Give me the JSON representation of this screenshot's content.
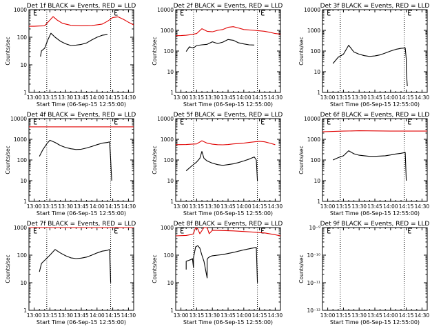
{
  "chart_data": [
    {
      "type": "line",
      "title": "Det 1f BLACK = Events, RED = LLD",
      "xlabel": "Start Time (06-Sep-15 12:55:00)",
      "ylabel": "Counts/sec",
      "yscale": "log",
      "ylim": [
        1,
        1000
      ],
      "ytick_labels": [
        "1",
        "10",
        "100",
        "1000"
      ],
      "xlim": [
        "12:55",
        "14:35"
      ],
      "xtick_labels": [
        "13:00",
        "13:15",
        "13:30",
        "13:45",
        "14:00",
        "14:15",
        "14:30"
      ],
      "vlines": [
        "13:12",
        "14:13"
      ],
      "edge_markers": [
        "13:00",
        "14:17"
      ],
      "series": [
        {
          "color": "#000000",
          "x": [
            "13:06",
            "13:07",
            "13:10",
            "13:13",
            "13:16",
            "13:20",
            "13:25",
            "13:30",
            "13:35",
            "13:40",
            "13:45",
            "13:50",
            "13:55",
            "14:00",
            "14:05",
            "14:10"
          ],
          "values": [
            20,
            32,
            40,
            80,
            140,
            100,
            72,
            58,
            50,
            52,
            55,
            62,
            80,
            100,
            118,
            125
          ]
        },
        {
          "color": "#e00000",
          "x": [
            "12:55",
            "13:00",
            "13:05",
            "13:10",
            "13:15",
            "13:18",
            "13:22",
            "13:27",
            "13:35",
            "13:45",
            "13:55",
            "14:05",
            "14:10",
            "14:15",
            "14:20",
            "14:25",
            "14:30",
            "14:35"
          ],
          "values": [
            250,
            250,
            255,
            260,
            420,
            560,
            420,
            320,
            270,
            260,
            265,
            300,
            380,
            520,
            550,
            450,
            350,
            280
          ]
        }
      ]
    },
    {
      "type": "line",
      "title": "Det 2f BLACK = Events, RED = LLD",
      "xlabel": "Start Time (06-Sep-15 12:55:00)",
      "ylabel": "Counts/sec",
      "yscale": "log",
      "ylim": [
        1,
        10000
      ],
      "ytick_labels": [
        "1",
        "10",
        "100",
        "1000",
        "10000"
      ],
      "xlim": [
        "12:55",
        "14:35"
      ],
      "xtick_labels": [
        "13:00",
        "13:15",
        "13:30",
        "13:45",
        "14:00",
        "14:15",
        "14:30"
      ],
      "vlines": [
        "13:12",
        "14:13"
      ],
      "edge_markers": [
        "13:00",
        "14:17"
      ],
      "series": [
        {
          "color": "#000000",
          "x": [
            "13:05",
            "13:08",
            "13:12",
            "13:15",
            "13:20",
            "13:25",
            "13:30",
            "13:35",
            "13:40",
            "13:45",
            "13:50",
            "13:55",
            "14:00",
            "14:05",
            "14:10"
          ],
          "values": [
            95,
            160,
            140,
            185,
            200,
            210,
            280,
            230,
            270,
            360,
            330,
            250,
            220,
            200,
            195
          ]
        },
        {
          "color": "#e00000",
          "x": [
            "12:55",
            "13:00",
            "13:05",
            "13:10",
            "13:15",
            "13:20",
            "13:25",
            "13:30",
            "13:35",
            "13:40",
            "13:45",
            "13:50",
            "13:55",
            "14:00",
            "14:05",
            "14:10",
            "14:15",
            "14:20",
            "14:25",
            "14:30",
            "14:35"
          ],
          "values": [
            550,
            560,
            580,
            620,
            700,
            1200,
            900,
            850,
            1000,
            1100,
            1400,
            1500,
            1300,
            1100,
            1050,
            1000,
            950,
            900,
            800,
            700,
            650
          ]
        }
      ]
    },
    {
      "type": "line",
      "title": "Det 3f BLACK = Events, RED = LLD",
      "xlabel": "Start Time (06-Sep-15 12:55:00)",
      "ylabel": "Counts/sec",
      "yscale": "log",
      "ylim": [
        1,
        10000
      ],
      "ytick_labels": [
        "1",
        "10",
        "100",
        "1000",
        "10000"
      ],
      "xlim": [
        "12:55",
        "14:35"
      ],
      "xtick_labels": [
        "13:00",
        "13:15",
        "13:30",
        "13:45",
        "14:00",
        "14:15",
        "14:30"
      ],
      "vlines": [
        "13:12",
        "14:13"
      ],
      "edge_markers": [
        "13:00",
        "14:17"
      ],
      "series": [
        {
          "color": "#000000",
          "x": [
            "13:05",
            "13:10",
            "13:15",
            "13:20",
            "13:25",
            "13:30",
            "13:35",
            "13:40",
            "13:45",
            "13:50",
            "13:55",
            "14:00",
            "14:05",
            "14:10",
            "14:14",
            "14:15",
            "14:15",
            "14:16"
          ],
          "values": [
            25,
            50,
            70,
            190,
            90,
            70,
            60,
            55,
            58,
            65,
            80,
            100,
            120,
            135,
            140,
            40,
            12,
            2
          ]
        }
      ]
    },
    {
      "type": "line",
      "title": "Det 4f BLACK = Events, RED = LLD",
      "xlabel": "Start Time (06-Sep-15 12:55:00)",
      "ylabel": "Counts/sec",
      "yscale": "log",
      "ylim": [
        1,
        10000
      ],
      "ytick_labels": [
        "1",
        "10",
        "100",
        "1000",
        "10000"
      ],
      "xlim": [
        "12:55",
        "14:35"
      ],
      "xtick_labels": [
        "13:00",
        "13:15",
        "13:30",
        "13:45",
        "14:00",
        "14:15",
        "14:30"
      ],
      "vlines": [
        "13:12",
        "14:13"
      ],
      "edge_markers": [
        "13:00",
        "14:17"
      ],
      "series": [
        {
          "color": "#000000",
          "x": [
            "13:05",
            "13:08",
            "13:12",
            "13:15",
            "13:20",
            "13:25",
            "13:30",
            "13:35",
            "13:40",
            "13:45",
            "13:50",
            "13:55",
            "14:00",
            "14:05",
            "14:10",
            "14:12",
            "14:13",
            "14:14"
          ],
          "values": [
            150,
            300,
            600,
            900,
            700,
            500,
            400,
            350,
            320,
            330,
            380,
            450,
            550,
            650,
            700,
            750,
            100,
            10
          ]
        },
        {
          "color": "#e00000",
          "x": [
            "12:55",
            "14:35"
          ],
          "values": [
            4000,
            4000
          ]
        }
      ]
    },
    {
      "type": "line",
      "title": "Det 5f BLACK = Events, RED = LLD",
      "xlabel": "Start Time (06-Sep-15 12:55:00)",
      "ylabel": "Counts/sec",
      "yscale": "log",
      "ylim": [
        1,
        10000
      ],
      "ytick_labels": [
        "1",
        "10",
        "100",
        "1000",
        "10000"
      ],
      "xlim": [
        "12:55",
        "14:35"
      ],
      "xtick_labels": [
        "13:00",
        "13:15",
        "13:30",
        "13:45",
        "14:00",
        "14:15",
        "14:30"
      ],
      "vlines": [
        "13:12",
        "14:13"
      ],
      "edge_markers": [
        "13:00",
        "14:17"
      ],
      "series": [
        {
          "color": "#000000",
          "x": [
            "13:05",
            "13:10",
            "13:15",
            "13:18",
            "13:20",
            "13:22",
            "13:25",
            "13:30",
            "13:35",
            "13:40",
            "13:45",
            "13:50",
            "13:55",
            "14:00",
            "14:05",
            "14:10",
            "14:12",
            "14:13"
          ],
          "values": [
            30,
            50,
            80,
            120,
            260,
            120,
            90,
            70,
            60,
            55,
            60,
            65,
            75,
            90,
            110,
            140,
            100,
            10
          ]
        },
        {
          "color": "#e00000",
          "x": [
            "12:55",
            "13:05",
            "13:10",
            "13:15",
            "13:20",
            "13:25",
            "13:30",
            "13:35",
            "13:40",
            "13:45",
            "13:50",
            "13:55",
            "14:00",
            "14:05",
            "14:10",
            "14:15",
            "14:20",
            "14:25",
            "14:30"
          ],
          "values": [
            550,
            560,
            580,
            600,
            850,
            650,
            580,
            550,
            540,
            560,
            600,
            620,
            650,
            700,
            750,
            800,
            750,
            650,
            550
          ]
        }
      ]
    },
    {
      "type": "line",
      "title": "Det 6f BLACK = Events, RED = LLD",
      "xlabel": "Start Time (06-Sep-15 12:55:00)",
      "ylabel": "Counts/sec",
      "yscale": "log",
      "ylim": [
        1,
        10000
      ],
      "ytick_labels": [
        "1",
        "10",
        "100",
        "1000",
        "10000"
      ],
      "xlim": [
        "12:55",
        "14:35"
      ],
      "xtick_labels": [
        "13:00",
        "13:15",
        "13:30",
        "13:45",
        "14:00",
        "14:15",
        "14:30"
      ],
      "vlines": [
        "13:12",
        "14:13"
      ],
      "edge_markers": [
        "13:00",
        "14:17"
      ],
      "series": [
        {
          "color": "#000000",
          "x": [
            "13:05",
            "13:10",
            "13:15",
            "13:20",
            "13:25",
            "13:30",
            "13:35",
            "13:40",
            "13:45",
            "13:50",
            "13:55",
            "14:00",
            "14:05",
            "14:10",
            "14:14",
            "14:15"
          ],
          "values": [
            100,
            130,
            160,
            280,
            200,
            170,
            160,
            150,
            150,
            155,
            160,
            175,
            195,
            210,
            230,
            10
          ]
        },
        {
          "color": "#e00000",
          "x": [
            "12:55",
            "13:15",
            "13:30",
            "14:00",
            "14:35"
          ],
          "values": [
            2300,
            2500,
            2600,
            2500,
            2500
          ]
        }
      ]
    },
    {
      "type": "line",
      "title": "Det 7f BLACK = Events, RED = LLD",
      "xlabel": "Start Time (06-Sep-15 12:55:00)",
      "ylabel": "Counts/sec",
      "yscale": "log",
      "ylim": [
        1,
        1000
      ],
      "ytick_labels": [
        "1",
        "10",
        "100",
        "1000"
      ],
      "xlim": [
        "12:55",
        "14:35"
      ],
      "xtick_labels": [
        "13:00",
        "13:15",
        "13:30",
        "13:45",
        "14:00",
        "14:15",
        "14:30"
      ],
      "vlines": [
        "13:12",
        "14:13"
      ],
      "edge_markers": [
        "13:00",
        "14:17"
      ],
      "series": [
        {
          "color": "#000000",
          "x": [
            "13:05",
            "13:07",
            "13:10",
            "13:15",
            "13:20",
            "13:25",
            "13:30",
            "13:35",
            "13:40",
            "13:45",
            "13:50",
            "13:55",
            "14:00",
            "14:05",
            "14:10",
            "14:12",
            "14:13"
          ],
          "values": [
            25,
            50,
            65,
            100,
            160,
            120,
            95,
            80,
            75,
            78,
            85,
            100,
            120,
            140,
            150,
            160,
            10
          ]
        },
        {
          "color": "#e00000",
          "x": [
            "12:55",
            "14:35"
          ],
          "values": [
            1000,
            1000
          ]
        }
      ]
    },
    {
      "type": "line",
      "title": "Det 8f BLACK = Events, RED = LLD",
      "xlabel": "Start Time (06-Sep-15 12:55:00)",
      "ylabel": "Counts/sec",
      "yscale": "log",
      "ylim": [
        1,
        1000
      ],
      "ytick_labels": [
        "1",
        "10",
        "100",
        "1000"
      ],
      "xlim": [
        "12:55",
        "14:35"
      ],
      "xtick_labels": [
        "13:00",
        "13:15",
        "13:30",
        "13:45",
        "14:00",
        "14:15",
        "14:30"
      ],
      "vlines": [
        "13:12",
        "14:13"
      ],
      "edge_markers": [
        "13:00",
        "14:17"
      ],
      "series": [
        {
          "color": "#000000",
          "x": [
            "13:05",
            "13:05",
            "13:10",
            "13:11",
            "13:12",
            "13:12",
            "13:14",
            "13:16",
            "13:18",
            "13:20",
            "13:22",
            "13:25",
            "13:25",
            "13:26",
            "13:28",
            "13:30",
            "13:35",
            "13:40",
            "13:45",
            "13:50",
            "13:55",
            "14:00",
            "14:05",
            "14:10",
            "14:12",
            "14:13"
          ],
          "values": [
            30,
            60,
            70,
            75,
            35,
            80,
            200,
            220,
            180,
            100,
            60,
            15,
            70,
            80,
            90,
            95,
            100,
            105,
            115,
            125,
            140,
            155,
            170,
            185,
            190,
            10
          ]
        },
        {
          "color": "#e00000",
          "x": [
            "12:55",
            "13:05",
            "13:10",
            "13:12",
            "13:14",
            "13:16",
            "13:18",
            "13:22",
            "13:25",
            "13:27",
            "13:30",
            "13:40",
            "13:50",
            "14:00",
            "14:10",
            "14:20",
            "14:30",
            "14:35"
          ],
          "values": [
            500,
            520,
            560,
            600,
            1000,
            900,
            600,
            1000,
            1000,
            600,
            800,
            780,
            760,
            720,
            680,
            640,
            550,
            500
          ]
        }
      ]
    },
    {
      "type": "line",
      "title": "Det 9f BLACK = Events, RED = LLD",
      "xlabel": "Start Time (06-Sep-15 12:55:00)",
      "ylabel": "Counts/sec",
      "yscale": "log",
      "ylim": [
        1e-12,
        1e-09
      ],
      "ytick_labels": [
        "10⁻¹²",
        "10⁻¹¹",
        "10⁻¹⁰",
        "10⁻⁹"
      ],
      "xlim": [
        "12:55",
        "14:35"
      ],
      "xtick_labels": [
        "13:00",
        "13:15",
        "13:30",
        "13:45",
        "14:00",
        "14:15",
        "14:30"
      ],
      "vlines": [
        "13:12",
        "14:13"
      ],
      "edge_markers": [
        "13:00",
        "14:17"
      ],
      "series": []
    }
  ]
}
